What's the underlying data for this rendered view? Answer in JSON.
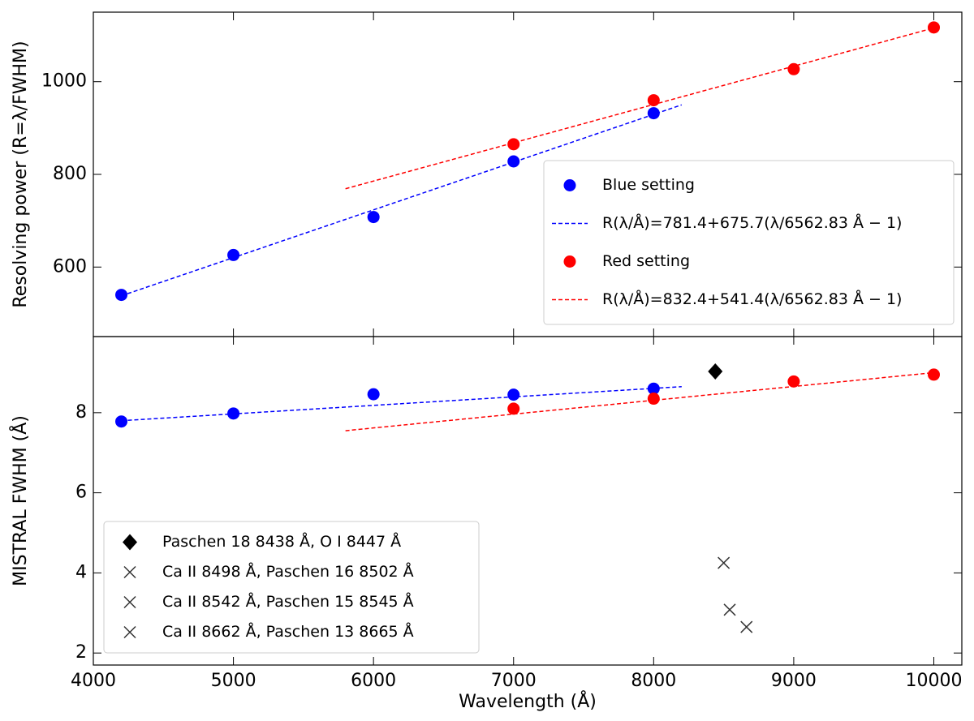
{
  "chart_data": [
    {
      "type": "scatter",
      "ylabel": "Resolving power (R=λ/FWHM)",
      "xlim": [
        4000,
        10200
      ],
      "ylim": [
        450,
        1150
      ],
      "yticks": [
        600,
        800,
        1000
      ],
      "legend": "lower right",
      "series": [
        {
          "name": "Blue setting",
          "color": "#0000ff",
          "marker": "o",
          "x": [
            4200,
            5000,
            6000,
            7000,
            8000
          ],
          "values": [
            540,
            626,
            708,
            828,
            932
          ]
        },
        {
          "name": "R(λ/Å)=781.4+675.7(λ/6562.83 Å − 1)",
          "color": "#0000ff",
          "marker": "--",
          "x": [
            4200,
            8200
          ],
          "values": [
            538,
            950
          ]
        },
        {
          "name": "Red setting",
          "color": "#ff0000",
          "marker": "o",
          "x": [
            7000,
            8000,
            9000,
            10000
          ],
          "values": [
            865,
            960,
            1027,
            1117
          ]
        },
        {
          "name": "R(λ/Å)=832.4+541.4(λ/6562.83 Å − 1)",
          "color": "#ff0000",
          "marker": "--",
          "x": [
            5800,
            10000
          ],
          "values": [
            769,
            1116
          ]
        }
      ]
    },
    {
      "type": "scatter",
      "ylabel": "MISTRAL FWHM (Å)",
      "xlabel": "Wavelength (Å)",
      "xlim": [
        4000,
        10200
      ],
      "xticks": [
        4000,
        5000,
        6000,
        7000,
        8000,
        9000,
        10000
      ],
      "ylim": [
        1.7,
        9.9
      ],
      "yticks": [
        2,
        4,
        6,
        8
      ],
      "legend": "lower left",
      "series": [
        {
          "color": "#0000ff",
          "marker": "o",
          "x": [
            4200,
            5000,
            6000,
            7000,
            8000
          ],
          "values": [
            7.78,
            7.98,
            8.46,
            8.45,
            8.6
          ]
        },
        {
          "color": "#0000ff",
          "marker": "--",
          "x": [
            4200,
            8200
          ],
          "values": [
            7.8,
            8.65
          ]
        },
        {
          "color": "#ff0000",
          "marker": "o",
          "x": [
            7000,
            8000,
            9000,
            10000
          ],
          "values": [
            8.1,
            8.35,
            8.78,
            8.95
          ]
        },
        {
          "color": "#ff0000",
          "marker": "--",
          "x": [
            5800,
            10000
          ],
          "values": [
            7.55,
            9.0
          ]
        },
        {
          "name": "Paschen 18 8438 Å, O I 8447 Å",
          "color": "#000000",
          "marker": "D",
          "x": [
            8440
          ],
          "values": [
            9.03
          ]
        },
        {
          "name": "Ca II 8498 Å, Paschen 16 8502 Å",
          "color": "#333333",
          "marker": "x",
          "x": [
            8500
          ],
          "values": [
            4.25
          ]
        },
        {
          "name": "Ca II 8542 Å, Paschen 15 8545 Å",
          "color": "#333333",
          "marker": "x",
          "x": [
            8543
          ],
          "values": [
            3.08
          ]
        },
        {
          "name": "Ca II 8662 Å, Paschen 13 8665 Å",
          "color": "#333333",
          "marker": "x",
          "x": [
            8663
          ],
          "values": [
            2.65
          ]
        }
      ]
    }
  ]
}
